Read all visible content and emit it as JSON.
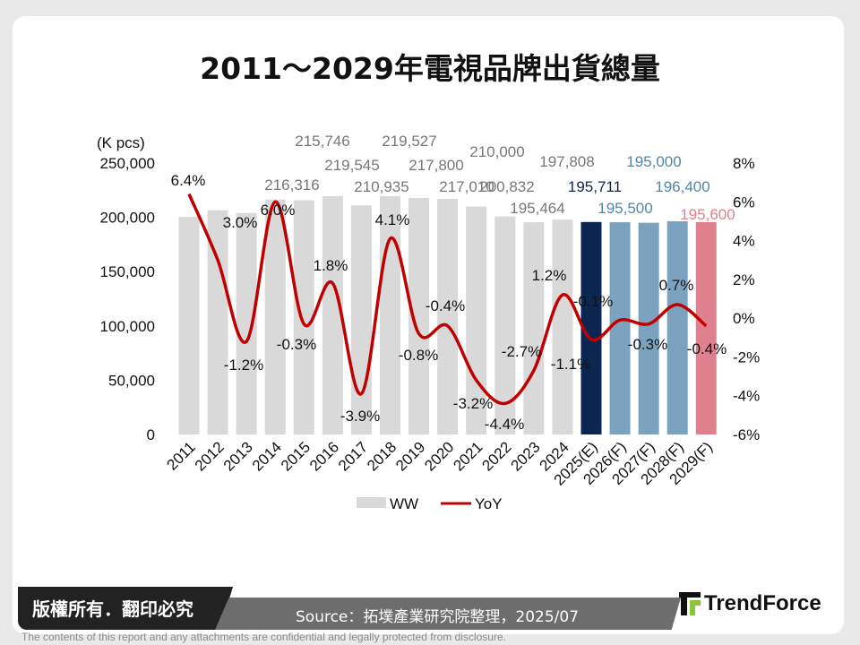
{
  "title": "2011～2029年電視品牌出貨總量",
  "footer": {
    "copyright": "版權所有．翻印必究",
    "source": "Source：拓墣產業研究院整理，2025/07",
    "logo": "TrendForce",
    "disclaimer": "The contents of this report and any attachments are confidential and legally protected from disclosure."
  },
  "chart_data": {
    "type": "bar+line",
    "title": "2011～2029年電視品牌出貨總量",
    "ylabel": "(K pcs)",
    "ylim": [
      0,
      250000
    ],
    "y_ticks": [
      "0",
      "50,000",
      "100,000",
      "150,000",
      "200,000",
      "250,000"
    ],
    "y2lim": [
      -6,
      8
    ],
    "y2_ticks": [
      "-6%",
      "-4%",
      "-2%",
      "0%",
      "2%",
      "4%",
      "6%",
      "8%"
    ],
    "categories": [
      "2011",
      "2012",
      "2013",
      "2014",
      "2015",
      "2016",
      "2017",
      "2018",
      "2019",
      "2020",
      "2021",
      "2022",
      "2023",
      "2024",
      "2025(E)",
      "2026(F)",
      "2027(F)",
      "2028(F)",
      "2029(F)"
    ],
    "legend": {
      "position": "bottom",
      "items": [
        "WW",
        "YoY"
      ]
    },
    "series": [
      {
        "name": "WW",
        "type": "bar",
        "values": [
          200500,
          206500,
          204000,
          216316,
          215746,
          219545,
          210935,
          219527,
          217800,
          217010,
          210000,
          200832,
          195464,
          197808,
          195711,
          195500,
          195000,
          196400,
          195600
        ],
        "labels": [
          "",
          "",
          "",
          "216,316",
          "215,746",
          "219,545",
          "210,935",
          "219,527",
          "217,800",
          "217,010",
          "210,000",
          "200,832",
          "195,464",
          "197,808",
          "195,711",
          "195,500",
          "195,000",
          "196,400",
          "195,600"
        ],
        "colors": [
          "#d9d9d9",
          "#d9d9d9",
          "#d9d9d9",
          "#d9d9d9",
          "#d9d9d9",
          "#d9d9d9",
          "#d9d9d9",
          "#d9d9d9",
          "#d9d9d9",
          "#d9d9d9",
          "#d9d9d9",
          "#d9d9d9",
          "#d9d9d9",
          "#d9d9d9",
          "#0c2652",
          "#7ba3bf",
          "#7ba3bf",
          "#7ba3bf",
          "#e0808f"
        ],
        "label_colors": [
          "#777",
          "#777",
          "#777",
          "#777",
          "#777",
          "#777",
          "#777",
          "#777",
          "#777",
          "#777",
          "#777",
          "#777",
          "#777",
          "#777",
          "#0c2652",
          "#4f86ab",
          "#4f86ab",
          "#4f86ab",
          "#e0808f"
        ]
      },
      {
        "name": "YoY",
        "type": "line",
        "color": "#c00000",
        "values": [
          6.4,
          3.0,
          -1.2,
          6.0,
          -0.3,
          1.8,
          -3.9,
          4.1,
          -0.8,
          -0.4,
          -3.2,
          -4.4,
          -2.7,
          1.2,
          -1.1,
          -0.1,
          -0.3,
          0.7,
          -0.4
        ],
        "labels": [
          "6.4%",
          "3.0%",
          "-1.2%",
          "6.0%",
          "-0.3%",
          "1.8%",
          "-3.9%",
          "4.1%",
          "-0.8%",
          "-0.4%",
          "-3.2%",
          "-4.4%",
          "-2.7%",
          "1.2%",
          "-1.1%",
          "-0.1%",
          "-0.3%",
          "0.7%",
          "-0.4%"
        ]
      }
    ]
  }
}
